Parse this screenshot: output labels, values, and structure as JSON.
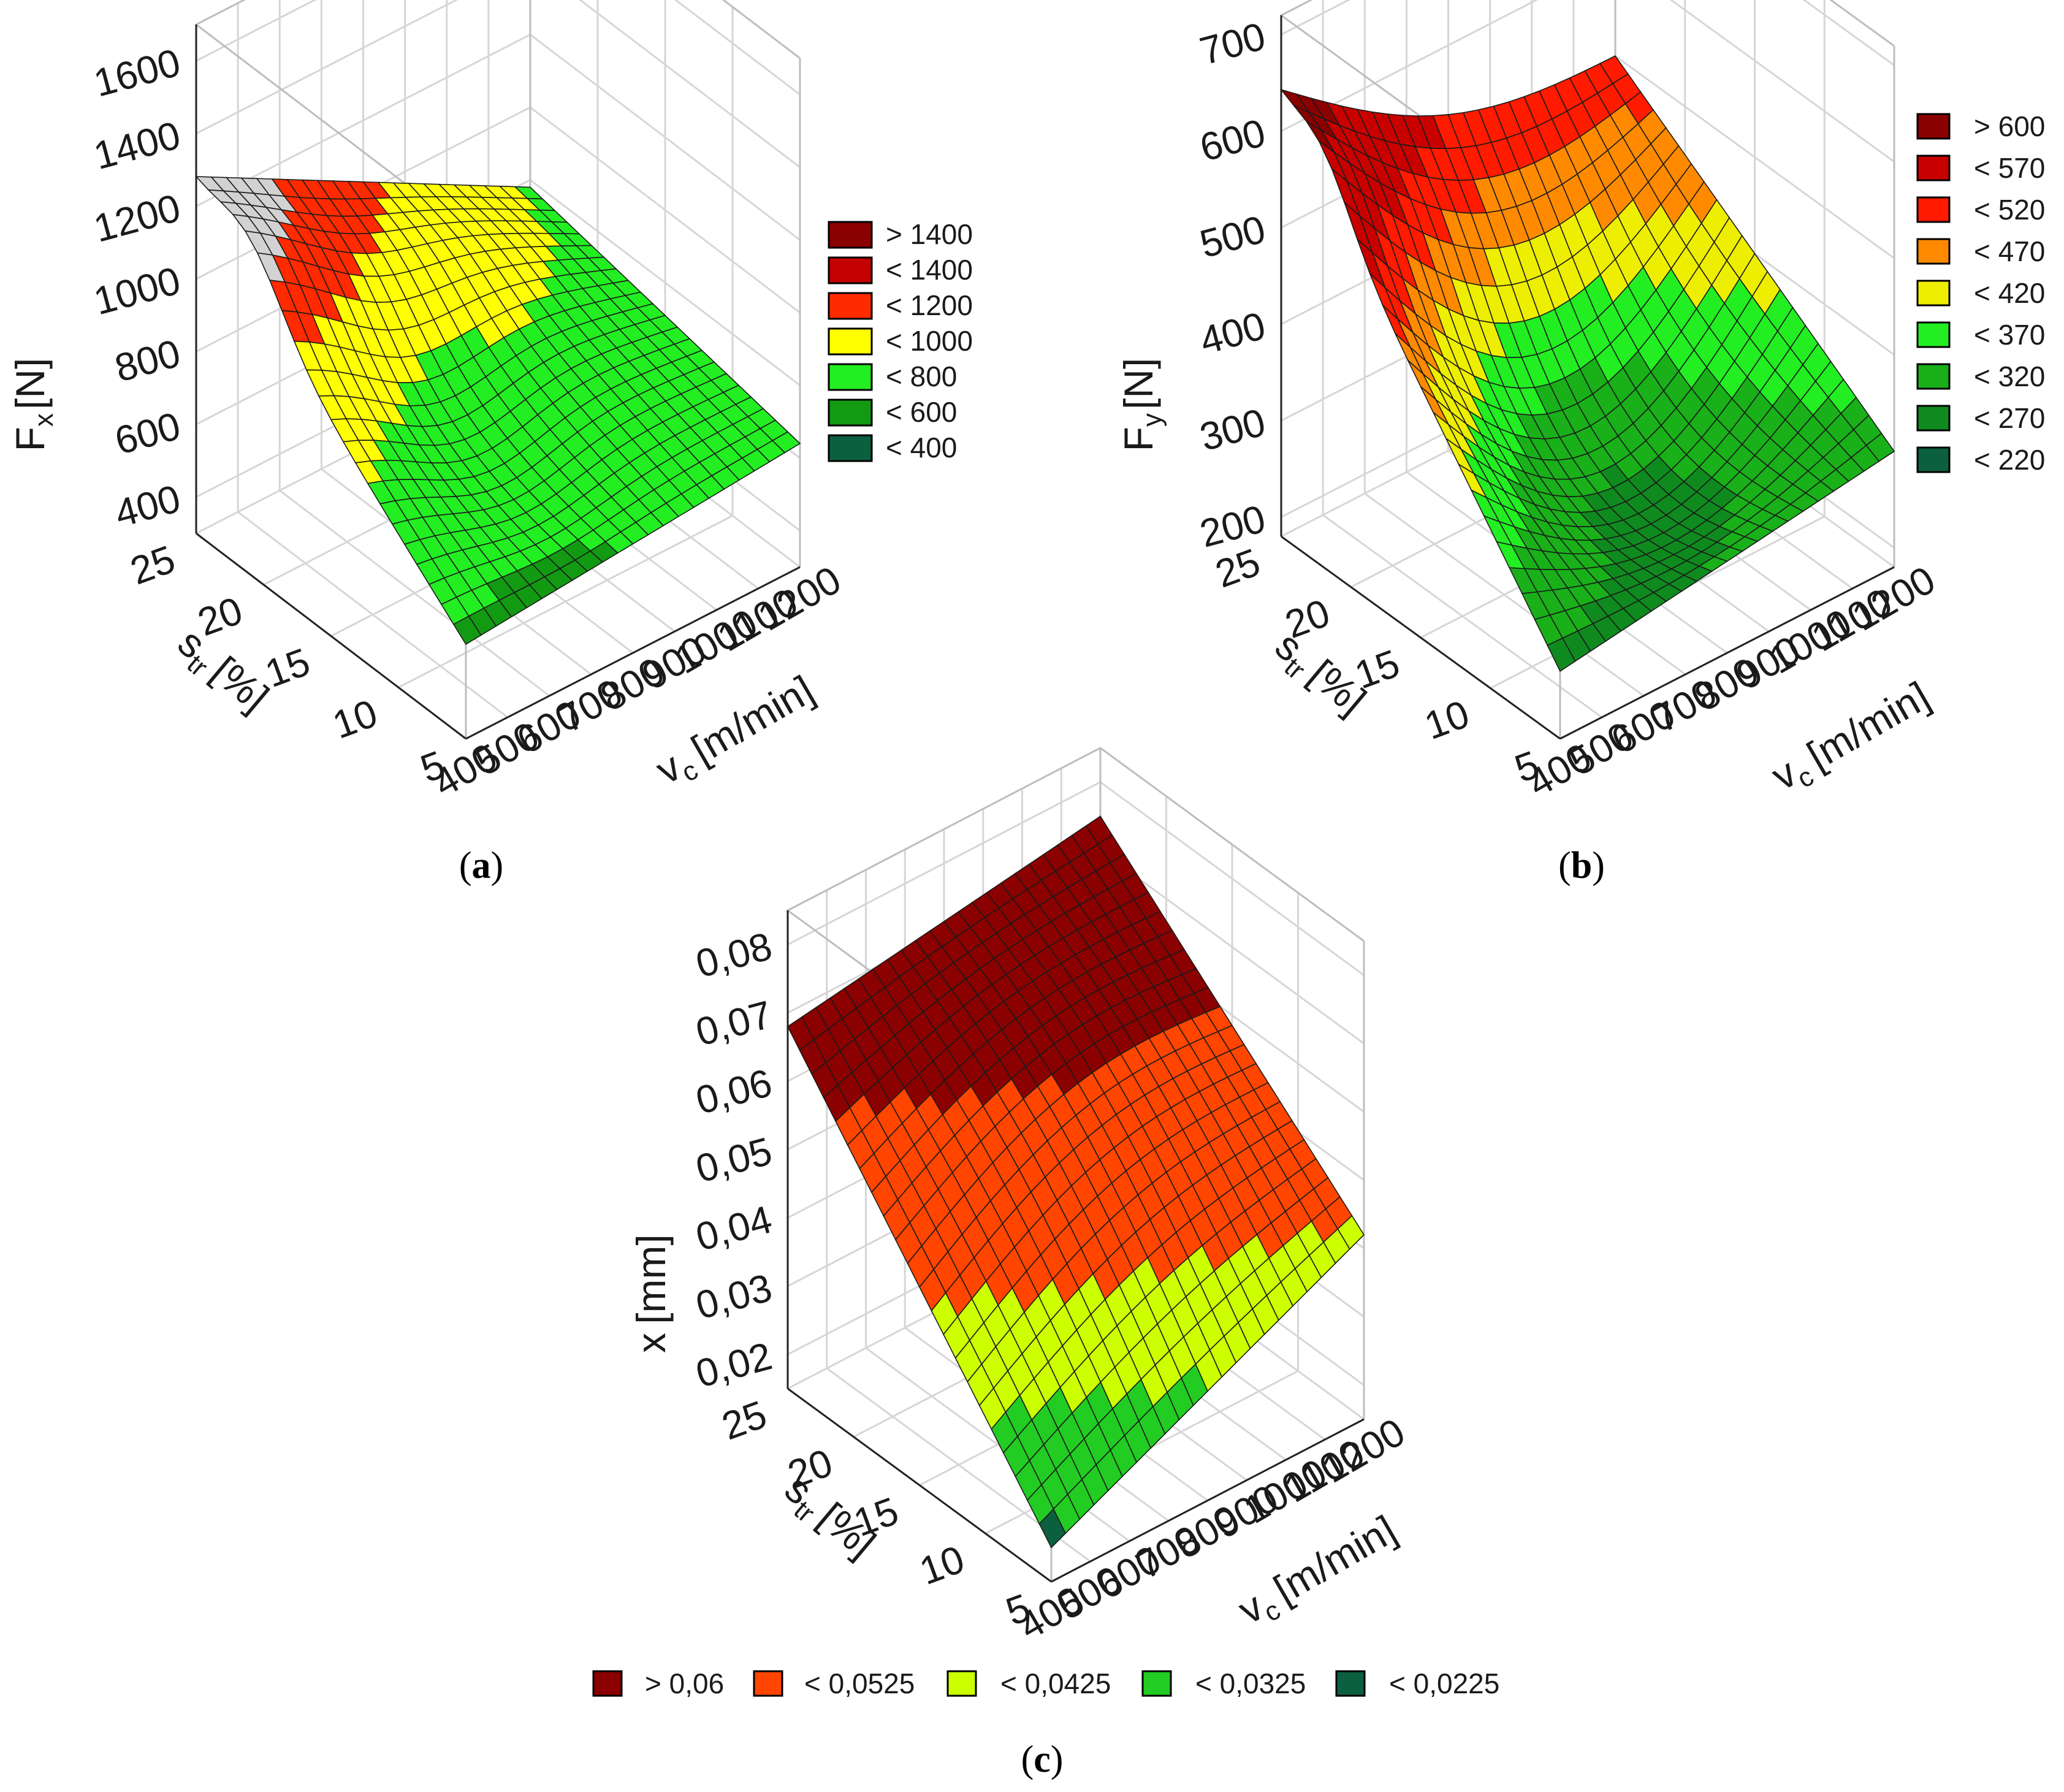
{
  "chart_data": [
    {
      "type": "surface3d",
      "panel": "a",
      "caption_open": "(",
      "caption_letter": "a",
      "caption_close": ")",
      "z_label": "F",
      "z_sub": "x",
      "z_unit": "[N]",
      "x_label": "v",
      "x_sub": "c",
      "x_unit": "[m/min]",
      "y_label": "s",
      "y_sub": "tr",
      "y_unit": "[%]",
      "z_ticks": [
        "400",
        "600",
        "800",
        "1000",
        "1200",
        "1400",
        "1600"
      ],
      "z_range": [
        300,
        1700
      ],
      "x_ticks": [
        "400",
        "500",
        "600",
        "700",
        "800",
        "900",
        "1000",
        "1100",
        "1200"
      ],
      "x_range": [
        400,
        1200
      ],
      "y_ticks": [
        "5",
        "10",
        "15",
        "20",
        "25"
      ],
      "y_range": [
        5,
        25
      ],
      "corners": {
        "vc400_str25": 1250,
        "vc400_str5": 560,
        "vc1200_str5": 640,
        "vc1200_str25": 780,
        "peak_vc400_str20": 1300
      },
      "legend_position": "right",
      "legend": [
        {
          "label": "> 1400",
          "color": "#8b0000"
        },
        {
          "label": "< 1400",
          "color": "#c40000"
        },
        {
          "label": "< 1200",
          "color": "#ff2a00"
        },
        {
          "label": "< 1000",
          "color": "#ffff00"
        },
        {
          "label": "< 800",
          "color": "#22ee22"
        },
        {
          "label": "< 600",
          "color": "#129a12"
        },
        {
          "label": "< 400",
          "color": "#0b6040"
        }
      ],
      "overflow_color": "#d2d2d2"
    },
    {
      "type": "surface3d",
      "panel": "b",
      "caption_open": "(",
      "caption_letter": "b",
      "caption_close": ")",
      "z_label": "F",
      "z_sub": "y",
      "z_unit": "[N]",
      "x_label": "v",
      "x_sub": "c",
      "x_unit": "[m/min]",
      "y_label": "s",
      "y_sub": "tr",
      "y_unit": "[%]",
      "z_ticks": [
        "200",
        "300",
        "400",
        "500",
        "600",
        "700"
      ],
      "z_range": [
        180,
        720
      ],
      "x_ticks": [
        "400",
        "500",
        "600",
        "700",
        "800",
        "900",
        "1000",
        "1100",
        "1200"
      ],
      "x_range": [
        400,
        1200
      ],
      "y_ticks": [
        "5",
        "10",
        "15",
        "20",
        "25"
      ],
      "y_range": [
        5,
        25
      ],
      "corners": {
        "vc400_str25": 630,
        "vc400_str5": 250,
        "vc1200_str5": 300,
        "vc1200_str25": 500
      },
      "legend_position": "right",
      "legend": [
        {
          "label": "> 600",
          "color": "#8b0000"
        },
        {
          "label": "< 570",
          "color": "#c80000"
        },
        {
          "label": "< 520",
          "color": "#ff1a00"
        },
        {
          "label": "< 470",
          "color": "#ff8a00"
        },
        {
          "label": "< 420",
          "color": "#eeee00"
        },
        {
          "label": "< 370",
          "color": "#22ee22"
        },
        {
          "label": "< 320",
          "color": "#19b019"
        },
        {
          "label": "< 270",
          "color": "#0f8a1f"
        },
        {
          "label": "< 220",
          "color": "#0b6040"
        }
      ]
    },
    {
      "type": "surface3d",
      "panel": "c",
      "caption_open": "(",
      "caption_letter": "c",
      "caption_close": ")",
      "z_label": "x",
      "z_unit": "[mm]",
      "x_label": "v",
      "x_sub": "c",
      "x_unit": "[m/min]",
      "y_label": "s",
      "y_sub": "tr",
      "y_unit": "[%]",
      "z_ticks": [
        "0,02",
        "0,03",
        "0,04",
        "0,05",
        "0,06",
        "0,07",
        "0,08"
      ],
      "z_range": [
        0.015,
        0.085
      ],
      "x_ticks": [
        "400",
        "500",
        "600",
        "700",
        "800",
        "900",
        "1000",
        "1100",
        "1200"
      ],
      "x_range": [
        400,
        1200
      ],
      "y_ticks": [
        "5",
        "10",
        "15",
        "20",
        "25"
      ],
      "y_range": [
        5,
        25
      ],
      "corners": {
        "vc400_str25": 0.068,
        "vc400_str5": 0.02,
        "vc1200_str5": 0.042,
        "vc1200_str25": 0.075
      },
      "legend_position": "bottom",
      "legend": [
        {
          "label": "> 0,06",
          "color": "#8b0000"
        },
        {
          "label": "< 0,0525",
          "color": "#ff4500"
        },
        {
          "label": "< 0,0425",
          "color": "#ccff00"
        },
        {
          "label": "< 0,0325",
          "color": "#22cc22"
        },
        {
          "label": "< 0,0225",
          "color": "#0b6040"
        }
      ]
    }
  ]
}
